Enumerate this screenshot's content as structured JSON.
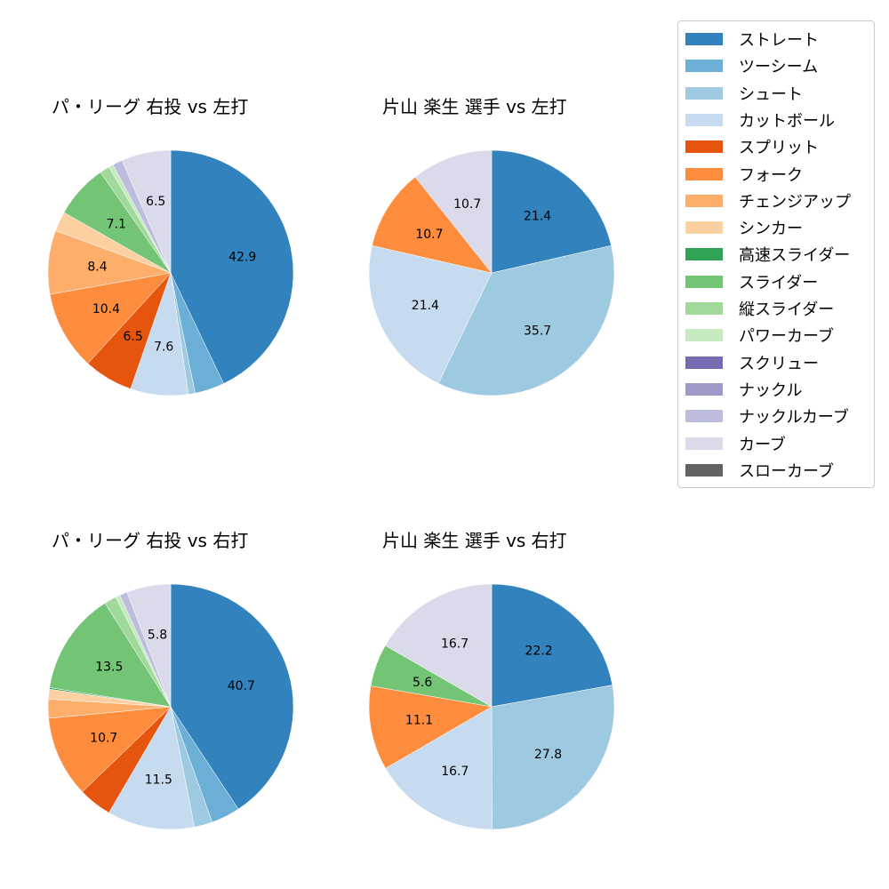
{
  "legend": [
    {
      "label": "ストレート",
      "color": "#3182bd"
    },
    {
      "label": "ツーシーム",
      "color": "#6baed6"
    },
    {
      "label": "シュート",
      "color": "#9ecae1"
    },
    {
      "label": "カットボール",
      "color": "#c6dbef"
    },
    {
      "label": "スプリット",
      "color": "#e6550d"
    },
    {
      "label": "フォーク",
      "color": "#fd8d3c"
    },
    {
      "label": "チェンジアップ",
      "color": "#fdae6b"
    },
    {
      "label": "シンカー",
      "color": "#fdd0a2"
    },
    {
      "label": "高速スライダー",
      "color": "#31a354"
    },
    {
      "label": "スライダー",
      "color": "#74c476"
    },
    {
      "label": "縦スライダー",
      "color": "#a1d99b"
    },
    {
      "label": "パワーカーブ",
      "color": "#c7e9c0"
    },
    {
      "label": "スクリュー",
      "color": "#756bb1"
    },
    {
      "label": "ナックル",
      "color": "#9e9ac8"
    },
    {
      "label": "ナックルカーブ",
      "color": "#bcbddc"
    },
    {
      "label": "カーブ",
      "color": "#dadaeb"
    },
    {
      "label": "スローカーブ",
      "color": "#636363"
    }
  ],
  "chart_data": [
    {
      "type": "pie",
      "title": "パ・リーグ 右投 vs 左打",
      "categories": [
        "ストレート",
        "ツーシーム",
        "シュート",
        "カットボール",
        "スプリット",
        "フォーク",
        "チェンジアップ",
        "シンカー",
        "スライダー",
        "縦スライダー",
        "パワーカーブ",
        "ナックルカーブ",
        "カーブ"
      ],
      "values": [
        42.9,
        3.9,
        0.9,
        7.6,
        6.5,
        10.4,
        8.4,
        2.6,
        7.1,
        1.3,
        0.6,
        1.3,
        6.5
      ],
      "labels_shown": [
        42.9,
        10.4,
        8.4
      ],
      "start_angle": 90,
      "direction": "clockwise"
    },
    {
      "type": "pie",
      "title": "片山 楽生 選手 vs 左打",
      "categories": [
        "ストレート",
        "シュート",
        "カットボール",
        "フォーク",
        "カーブ"
      ],
      "values": [
        21.4,
        35.7,
        21.4,
        10.7,
        10.7
      ],
      "labels_shown": [
        21.4,
        35.7,
        21.4,
        10.7,
        10.7
      ],
      "start_angle": 90,
      "direction": "clockwise"
    },
    {
      "type": "pie",
      "title": "パ・リーグ 右投 vs 右打",
      "categories": [
        "ストレート",
        "ツーシーム",
        "シュート",
        "カットボール",
        "スプリット",
        "フォーク",
        "チェンジアップ",
        "シンカー",
        "高速スライダー",
        "スライダー",
        "縦スライダー",
        "パワーカーブ",
        "ナックルカーブ",
        "カーブ"
      ],
      "values": [
        40.7,
        3.8,
        2.4,
        11.5,
        4.4,
        10.7,
        2.5,
        1.3,
        0.2,
        13.5,
        1.6,
        0.6,
        1.0,
        5.8
      ],
      "labels_shown": [
        40.7,
        11.5,
        10.7,
        13.5
      ],
      "start_angle": 90,
      "direction": "clockwise"
    },
    {
      "type": "pie",
      "title": "片山 楽生 選手 vs 右打",
      "categories": [
        "ストレート",
        "シュート",
        "カットボール",
        "フォーク",
        "スライダー",
        "カーブ"
      ],
      "values": [
        22.2,
        27.8,
        16.7,
        11.1,
        5.6,
        16.7
      ],
      "labels_shown": [
        22.2,
        27.8,
        16.7,
        11.1,
        5.6,
        16.7
      ],
      "start_angle": 90,
      "direction": "clockwise"
    }
  ]
}
